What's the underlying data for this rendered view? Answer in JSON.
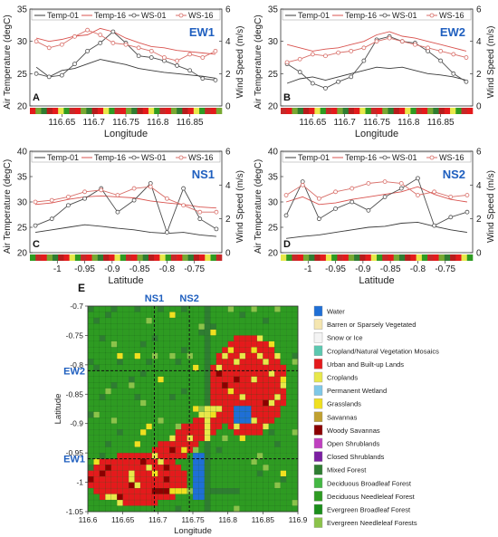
{
  "colors": {
    "temp01": "#3a3a3a",
    "temp16": "#d9534f",
    "ws01": "#4d4d4d",
    "ws16": "#d86e68",
    "urban": "#e41a1c",
    "forest": "#2e9b22",
    "cropland": "#78a832"
  },
  "line_panels": [
    {
      "panel_letter": "A",
      "tag": "EW1",
      "xlabel": "Longitude",
      "ylabel_left": "Air Temperature (degC)",
      "ylabel_right": "Wind Speed (m/s)",
      "legend": [
        "Temp-01",
        "Temp-16",
        "WS-01",
        "WS-16"
      ],
      "x_ticks": [
        "116.65",
        "116.7",
        "116.75",
        "116.8",
        "116.85"
      ],
      "y_left_ticks": [
        "20",
        "25",
        "30",
        "35"
      ],
      "y_right_ticks": [
        "0",
        "2",
        "4",
        "6"
      ]
    },
    {
      "panel_letter": "B",
      "tag": "EW2",
      "xlabel": "Longitude",
      "ylabel_left": "Air Temperature (degC)",
      "ylabel_right": "Wind Speed (m/s)",
      "legend": [
        "Temp-01",
        "Temp-16",
        "WS-01",
        "WS-16"
      ],
      "x_ticks": [
        "116.65",
        "116.7",
        "116.75",
        "116.8",
        "116.85"
      ],
      "y_left_ticks": [
        "20",
        "25",
        "30",
        "35"
      ],
      "y_right_ticks": [
        "0",
        "2",
        "4",
        "6"
      ]
    },
    {
      "panel_letter": "C",
      "tag": "NS1",
      "xlabel": "Latitude",
      "ylabel_left": "Air Temperature (degC)",
      "ylabel_right": "Wind Speed (m/s)",
      "legend": [
        "Temp-01",
        "Temp-16",
        "WS-01",
        "WS-16"
      ],
      "x_ticks": [
        "-1",
        "-0.95",
        "-0.9",
        "-0.85",
        "-0.8",
        "-0.75"
      ],
      "y_left_ticks": [
        "20",
        "25",
        "30",
        "35",
        "40"
      ],
      "y_right_ticks": [
        "0",
        "2",
        "4",
        "6"
      ]
    },
    {
      "panel_letter": "D",
      "tag": "NS2",
      "xlabel": "Latitude",
      "ylabel_left": "Air Temperature (degC)",
      "ylabel_right": "Wind Speed (m/s)",
      "legend": [
        "Temp-01",
        "Temp-16",
        "WS-01",
        "WS-16"
      ],
      "x_ticks": [
        "-1",
        "-0.95",
        "-0.9",
        "-0.85",
        "-0.8",
        "-0.75"
      ],
      "y_left_ticks": [
        "20",
        "25",
        "30",
        "35",
        "40"
      ],
      "y_right_ticks": [
        "0",
        "2",
        "4",
        "6"
      ]
    }
  ],
  "map_panel": {
    "panel_letter": "E",
    "xlabel": "Longitude",
    "ylabel": "Latitude",
    "x_ticks": [
      "116.6",
      "116.65",
      "116.7",
      "116.75",
      "116.8",
      "116.85",
      "116.9"
    ],
    "y_ticks": [
      "-0.7",
      "-0.75",
      "-0.8",
      "-0.85",
      "-0.9",
      "-0.95",
      "-1",
      "-1.05"
    ],
    "transect_labels": [
      "NS1",
      "NS2",
      "EW2",
      "EW1"
    ],
    "legend": [
      {
        "label": "Water",
        "color": "#1f6fd6"
      },
      {
        "label": "Barren or Sparsely Vegetated",
        "color": "#f5e6b0"
      },
      {
        "label": "Snow or Ice",
        "color": "#f4f4f4"
      },
      {
        "label": "Cropland/Natural Vegetation Mosaics",
        "color": "#5cc8b0"
      },
      {
        "label": "Urban and Built-up Lands",
        "color": "#e41a1c"
      },
      {
        "label": "Croplands",
        "color": "#e8e84a"
      },
      {
        "label": "Permanent Wetland",
        "color": "#7ec8e8"
      },
      {
        "label": "Grasslands",
        "color": "#f0e020"
      },
      {
        "label": "Savannas",
        "color": "#c0a030"
      },
      {
        "label": "Woody Savannas",
        "color": "#8b0000"
      },
      {
        "label": "Open Shrublands",
        "color": "#c040c0"
      },
      {
        "label": "Closed Shrublands",
        "color": "#7b1fa2"
      },
      {
        "label": "Mixed Forest",
        "color": "#2f7d32"
      },
      {
        "label": "Deciduous Broadleaf Forest",
        "color": "#44b844"
      },
      {
        "label": "Deciduous Needleleaf Forest",
        "color": "#2e9b22"
      },
      {
        "label": "Evergreen Broadleaf Forest",
        "color": "#1b8e1b"
      },
      {
        "label": "Evergreen Needleleaf Forests",
        "color": "#8bc34a"
      }
    ]
  },
  "chart_data": [
    {
      "type": "line",
      "panel": "A",
      "x": [
        116.61,
        116.63,
        116.65,
        116.67,
        116.69,
        116.71,
        116.73,
        116.75,
        116.77,
        116.79,
        116.81,
        116.83,
        116.85,
        116.87,
        116.89
      ],
      "xlim": [
        116.6,
        116.9
      ],
      "y_left_lim": [
        20,
        35
      ],
      "y_right_lim": [
        0,
        6
      ],
      "series": [
        {
          "name": "Temp-01",
          "axis": "left",
          "values": [
            26.0,
            24.5,
            25.5,
            25.8,
            26.5,
            27.2,
            26.8,
            26.4,
            25.8,
            25.5,
            25.2,
            25.0,
            24.8,
            24.6,
            24.3
          ]
        },
        {
          "name": "Temp-16",
          "axis": "left",
          "values": [
            30.5,
            30.0,
            30.3,
            30.8,
            31.0,
            32.0,
            31.5,
            30.5,
            29.8,
            29.2,
            29.0,
            28.6,
            28.4,
            28.2,
            28.0
          ]
        },
        {
          "name": "WS-01",
          "axis": "right",
          "values": [
            2.0,
            1.8,
            1.9,
            2.6,
            3.4,
            3.9,
            4.6,
            3.9,
            3.1,
            3.0,
            2.8,
            2.5,
            2.2,
            1.7,
            1.6
          ]
        },
        {
          "name": "WS-16",
          "axis": "right",
          "values": [
            4.0,
            3.6,
            3.8,
            4.3,
            4.7,
            4.4,
            3.9,
            3.8,
            3.6,
            3.4,
            3.0,
            2.8,
            3.2,
            3.0,
            3.4
          ]
        }
      ]
    },
    {
      "type": "line",
      "panel": "B",
      "x": [
        116.61,
        116.63,
        116.65,
        116.67,
        116.69,
        116.71,
        116.73,
        116.75,
        116.77,
        116.79,
        116.81,
        116.83,
        116.85,
        116.87,
        116.89
      ],
      "xlim": [
        116.6,
        116.9
      ],
      "y_left_lim": [
        20,
        35
      ],
      "y_right_lim": [
        0,
        6
      ],
      "series": [
        {
          "name": "Temp-01",
          "axis": "left",
          "values": [
            23.5,
            24.2,
            24.5,
            24.0,
            24.5,
            25.0,
            25.5,
            26.0,
            25.8,
            26.0,
            25.5,
            25.0,
            24.8,
            24.5,
            24.0
          ]
        },
        {
          "name": "Temp-16",
          "axis": "left",
          "values": [
            29.5,
            29.0,
            28.5,
            28.8,
            29.0,
            29.5,
            30.0,
            31.0,
            31.5,
            30.8,
            30.5,
            30.0,
            29.5,
            29.0,
            28.5
          ]
        },
        {
          "name": "WS-01",
          "axis": "right",
          "values": [
            2.6,
            2.1,
            1.4,
            1.1,
            1.5,
            1.8,
            2.8,
            4.1,
            4.3,
            4.0,
            3.9,
            3.4,
            2.8,
            2.0,
            1.5
          ]
        },
        {
          "name": "WS-16",
          "axis": "right",
          "values": [
            2.7,
            2.9,
            3.2,
            3.1,
            3.3,
            3.4,
            3.6,
            4.0,
            4.2,
            4.0,
            3.8,
            3.6,
            3.4,
            3.2,
            3.0
          ]
        }
      ]
    },
    {
      "type": "line",
      "panel": "C",
      "x": [
        -1.04,
        -1.01,
        -0.98,
        -0.95,
        -0.92,
        -0.89,
        -0.86,
        -0.83,
        -0.8,
        -0.77,
        -0.74,
        -0.71
      ],
      "xlim": [
        -1.05,
        -0.7
      ],
      "y_left_lim": [
        20,
        40
      ],
      "y_right_lim": [
        0,
        6
      ],
      "series": [
        {
          "name": "Temp-01",
          "axis": "left",
          "values": [
            24.0,
            24.5,
            25.0,
            25.5,
            25.2,
            24.8,
            24.5,
            24.0,
            23.8,
            24.0,
            23.5,
            23.2
          ]
        },
        {
          "name": "Temp-16",
          "axis": "left",
          "values": [
            29.5,
            29.8,
            30.5,
            31.0,
            31.2,
            31.0,
            30.8,
            30.2,
            29.8,
            29.5,
            29.0,
            28.8
          ]
        },
        {
          "name": "WS-01",
          "axis": "right",
          "values": [
            1.6,
            2.0,
            2.8,
            3.2,
            3.8,
            2.4,
            3.1,
            4.1,
            1.2,
            3.8,
            2.0,
            1.4
          ]
        },
        {
          "name": "WS-16",
          "axis": "right",
          "values": [
            3.0,
            3.1,
            3.3,
            3.6,
            3.7,
            3.4,
            3.8,
            3.9,
            3.2,
            2.8,
            2.4,
            2.4
          ]
        }
      ]
    },
    {
      "type": "line",
      "panel": "D",
      "x": [
        -1.04,
        -1.01,
        -0.98,
        -0.95,
        -0.92,
        -0.89,
        -0.86,
        -0.83,
        -0.8,
        -0.77,
        -0.74,
        -0.71
      ],
      "xlim": [
        -1.05,
        -0.7
      ],
      "y_left_lim": [
        20,
        40
      ],
      "y_right_lim": [
        0,
        6
      ],
      "series": [
        {
          "name": "Temp-01",
          "axis": "left",
          "values": [
            22.8,
            23.2,
            23.5,
            24.0,
            24.5,
            25.0,
            25.2,
            25.8,
            26.0,
            25.2,
            24.5,
            24.0
          ]
        },
        {
          "name": "Temp-16",
          "axis": "left",
          "values": [
            30.0,
            31.0,
            29.5,
            29.8,
            30.5,
            31.0,
            31.5,
            32.0,
            33.0,
            31.5,
            30.5,
            30.0
          ]
        },
        {
          "name": "WS-01",
          "axis": "right",
          "values": [
            2.2,
            4.2,
            2.0,
            2.6,
            3.0,
            2.5,
            3.3,
            3.8,
            4.4,
            1.6,
            2.1,
            2.4
          ]
        },
        {
          "name": "WS-16",
          "axis": "right",
          "values": [
            3.4,
            4.0,
            3.2,
            3.6,
            3.8,
            4.1,
            4.2,
            4.1,
            3.4,
            3.6,
            3.3,
            3.4
          ]
        }
      ]
    }
  ]
}
